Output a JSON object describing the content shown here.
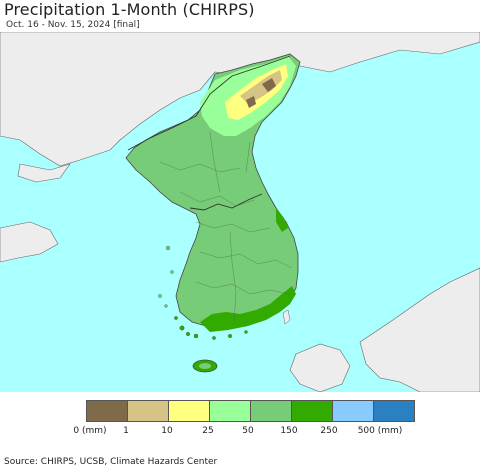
{
  "header": {
    "title": "Precipitation 1-Month (CHIRPS)",
    "subtitle": "Oct. 16 - Nov. 15, 2024 [final]"
  },
  "map": {
    "ocean_color": "#aaffff",
    "land_other_color": "#ededed",
    "border_color": "#555555"
  },
  "legend": {
    "swatches": [
      {
        "color": "#7f6a4a"
      },
      {
        "color": "#d6c486"
      },
      {
        "color": "#ffff80"
      },
      {
        "color": "#99ff99"
      },
      {
        "color": "#77cc77"
      },
      {
        "color": "#33aa00"
      },
      {
        "color": "#88ccff"
      },
      {
        "color": "#2a80c0"
      }
    ],
    "labels": [
      "0 (mm)",
      "1",
      "10",
      "25",
      "50",
      "150",
      "250",
      "500 (mm)"
    ]
  },
  "footer": {
    "source": "Source: CHIRPS, UCSB, Climate Hazards Center"
  }
}
